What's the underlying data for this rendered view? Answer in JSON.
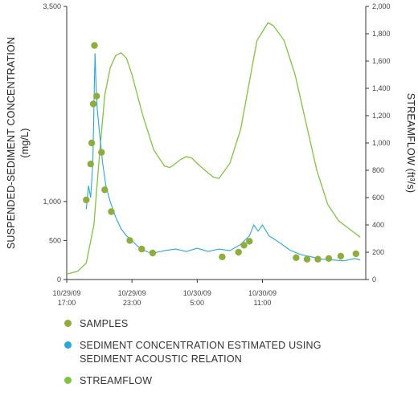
{
  "chart_data": {
    "type": "line",
    "y_left": {
      "label_line1": "SUSPENDED-SEDIMENT CONCENTRATION",
      "label_line2": "(mg/L)",
      "range": [
        0,
        3500
      ],
      "ticks": [
        "0",
        "500",
        "1,000",
        "3,500"
      ]
    },
    "y_right": {
      "label": "STREAMFLOW (ft³/s)",
      "range": [
        0,
        2000
      ],
      "ticks": [
        "0",
        "200",
        "400",
        "600",
        "800",
        "1,000",
        "1,200",
        "1,400",
        "1,600",
        "1,800",
        "2,000"
      ]
    },
    "x_axis": {
      "range_hours": [
        0,
        24
      ],
      "ticks": [
        {
          "hour": 0,
          "date": "10/29/09",
          "time": "17:00"
        },
        {
          "hour": 6,
          "date": "10/29/09",
          "time": "23:00"
        },
        {
          "hour": 12,
          "date": "10/30/09",
          "time": "5:00"
        },
        {
          "hour": 18,
          "date": "10/30/09",
          "time": "11:00"
        }
      ]
    },
    "series": [
      {
        "name": "SAMPLES",
        "kind": "scatter",
        "axis": "left",
        "color": "#8fad3c",
        "points": [
          [
            1.8,
            1020
          ],
          [
            2.2,
            1480
          ],
          [
            2.3,
            1750
          ],
          [
            2.45,
            2250
          ],
          [
            2.55,
            3000
          ],
          [
            2.75,
            2350
          ],
          [
            3.2,
            1630
          ],
          [
            3.5,
            1150
          ],
          [
            4.1,
            870
          ],
          [
            5.8,
            500
          ],
          [
            6.9,
            390
          ],
          [
            7.9,
            340
          ],
          [
            14.3,
            290
          ],
          [
            15.8,
            350
          ],
          [
            16.3,
            440
          ],
          [
            16.8,
            490
          ],
          [
            21.1,
            280
          ],
          [
            22.1,
            260
          ],
          [
            23.1,
            260
          ],
          [
            24.1,
            270
          ],
          [
            25.2,
            300
          ],
          [
            26.6,
            330
          ]
        ]
      },
      {
        "name": "SEDIMENT CONCENTRATION ESTIMATED USING SEDIMENT ACOUSTIC RELATION",
        "kind": "line",
        "axis": "left",
        "color": "#2aa7d9",
        "points": [
          [
            1.8,
            900
          ],
          [
            2.0,
            1200
          ],
          [
            2.2,
            1050
          ],
          [
            2.4,
            1500
          ],
          [
            2.6,
            2900
          ],
          [
            2.7,
            2500
          ],
          [
            2.8,
            2200
          ],
          [
            3.0,
            1900
          ],
          [
            3.3,
            1500
          ],
          [
            3.6,
            1200
          ],
          [
            4.0,
            1000
          ],
          [
            4.5,
            800
          ],
          [
            5.0,
            650
          ],
          [
            5.5,
            560
          ],
          [
            6.0,
            500
          ],
          [
            6.5,
            430
          ],
          [
            7.0,
            380
          ],
          [
            7.5,
            350
          ],
          [
            8.0,
            340
          ],
          [
            9.0,
            370
          ],
          [
            10.0,
            390
          ],
          [
            11.0,
            360
          ],
          [
            12.0,
            400
          ],
          [
            13.0,
            360
          ],
          [
            14.0,
            390
          ],
          [
            15.0,
            370
          ],
          [
            16.0,
            450
          ],
          [
            16.8,
            560
          ],
          [
            17.2,
            700
          ],
          [
            17.6,
            620
          ],
          [
            18.0,
            700
          ],
          [
            18.6,
            560
          ],
          [
            19.5,
            480
          ],
          [
            20.5,
            380
          ],
          [
            21.5,
            320
          ],
          [
            22.5,
            290
          ],
          [
            23.5,
            260
          ],
          [
            24.5,
            250
          ],
          [
            25.5,
            240
          ],
          [
            26.5,
            270
          ],
          [
            27.0,
            250
          ]
        ]
      },
      {
        "name": "STREAMFLOW",
        "kind": "line",
        "axis": "right",
        "color": "#80c342",
        "points": [
          [
            0,
            40
          ],
          [
            1.0,
            60
          ],
          [
            1.8,
            120
          ],
          [
            2.5,
            400
          ],
          [
            3.0,
            900
          ],
          [
            3.5,
            1350
          ],
          [
            4.0,
            1550
          ],
          [
            4.5,
            1640
          ],
          [
            5.0,
            1660
          ],
          [
            5.5,
            1620
          ],
          [
            6.0,
            1500
          ],
          [
            7.0,
            1200
          ],
          [
            8.0,
            950
          ],
          [
            9.0,
            830
          ],
          [
            9.5,
            820
          ],
          [
            10.0,
            850
          ],
          [
            10.5,
            880
          ],
          [
            11.0,
            900
          ],
          [
            11.5,
            890
          ],
          [
            12.0,
            850
          ],
          [
            13.0,
            780
          ],
          [
            13.5,
            750
          ],
          [
            14.0,
            740
          ],
          [
            15.0,
            850
          ],
          [
            16.0,
            1100
          ],
          [
            16.8,
            1450
          ],
          [
            17.5,
            1750
          ],
          [
            18.5,
            1880
          ],
          [
            19.0,
            1860
          ],
          [
            20.0,
            1750
          ],
          [
            21.0,
            1500
          ],
          [
            22.0,
            1150
          ],
          [
            23.0,
            800
          ],
          [
            24.0,
            550
          ],
          [
            25.0,
            430
          ],
          [
            26.0,
            370
          ],
          [
            27.0,
            310
          ]
        ]
      }
    ]
  },
  "legend": [
    {
      "label": "SAMPLES",
      "color": "#8fad3c"
    },
    {
      "label": "SEDIMENT CONCENTRATION ESTIMATED USING SEDIMENT ACOUSTIC RELATION",
      "color": "#2aa7d9"
    },
    {
      "label": "STREAMFLOW",
      "color": "#80c342"
    }
  ]
}
